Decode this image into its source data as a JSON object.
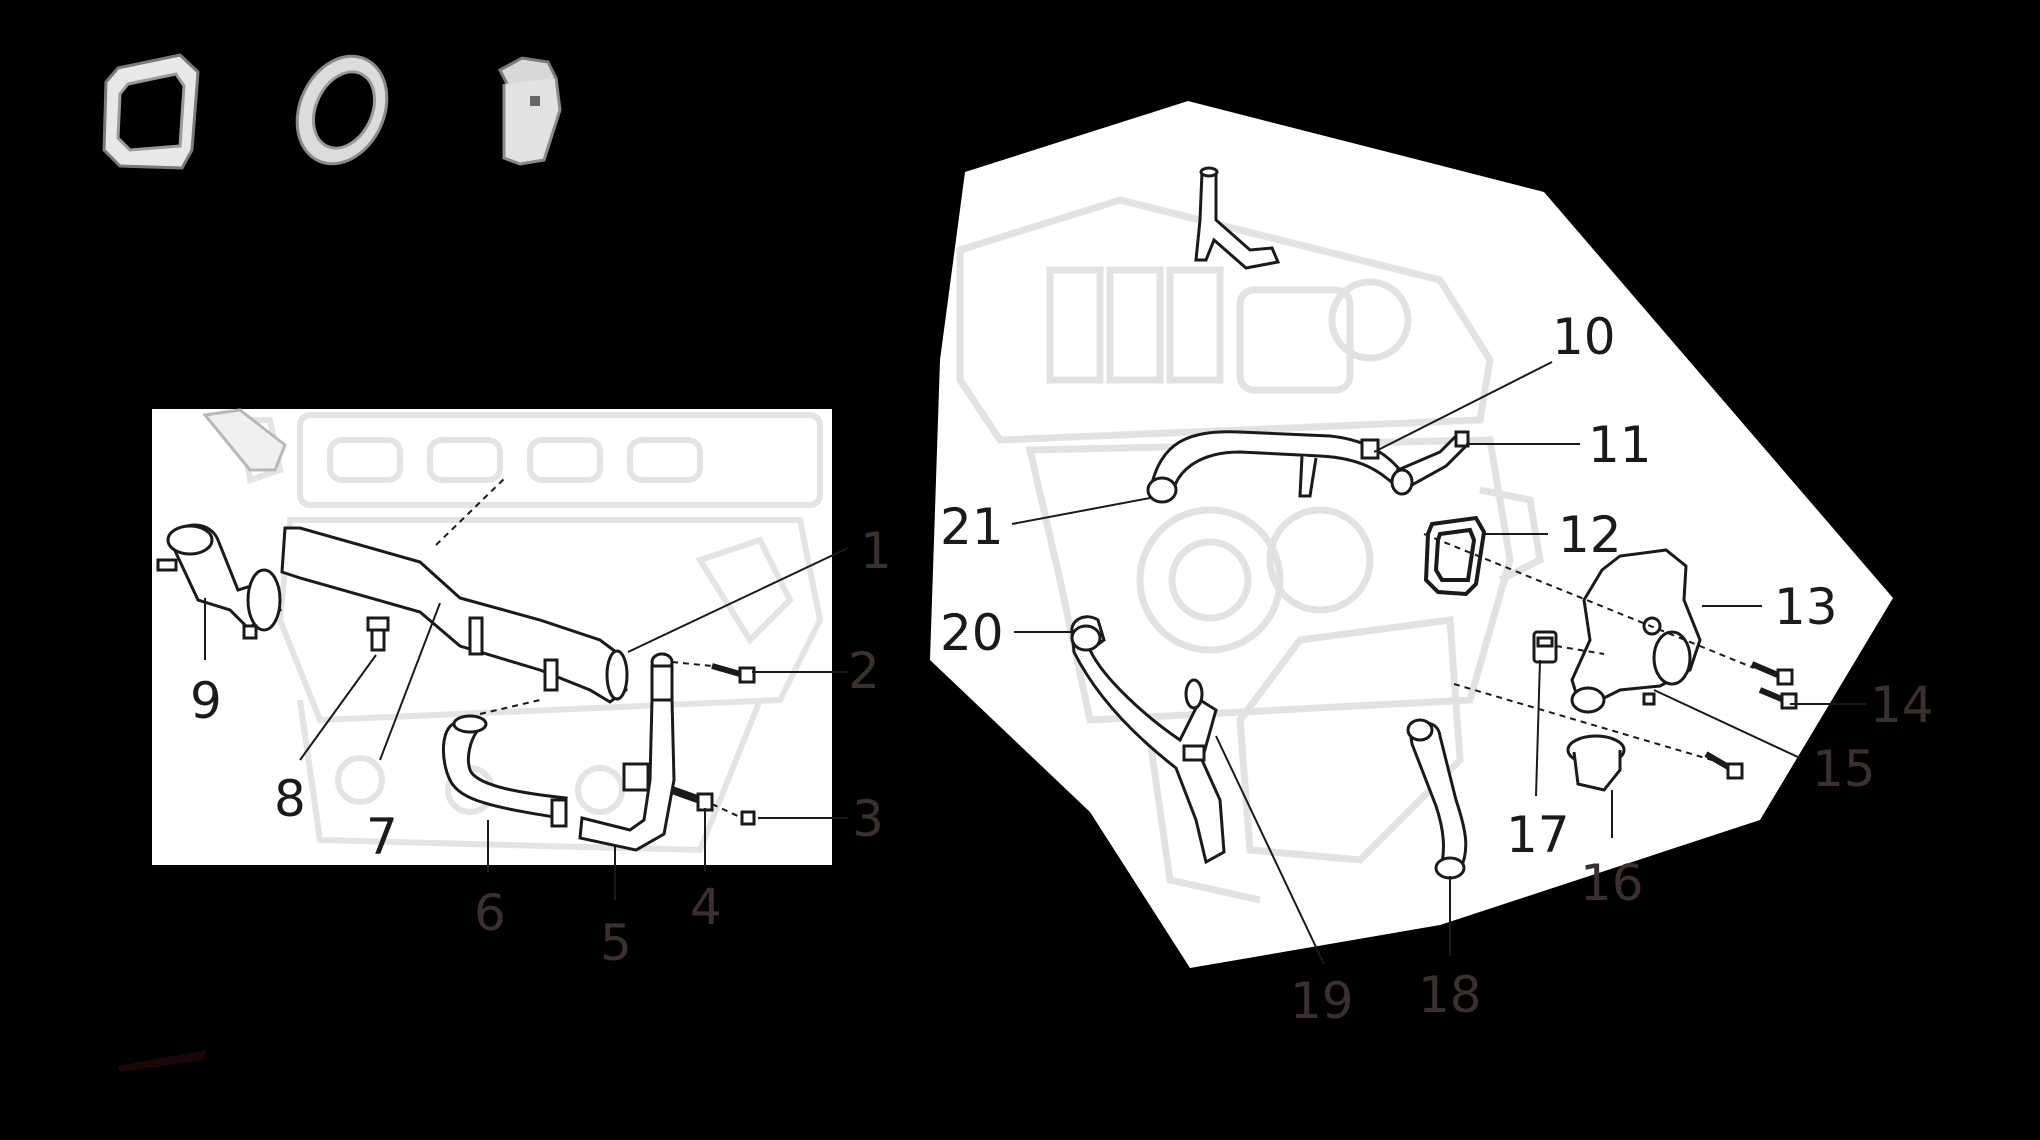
{
  "diagram": {
    "callouts": [
      {
        "id": "1",
        "label": "1"
      },
      {
        "id": "2",
        "label": "2"
      },
      {
        "id": "3",
        "label": "3"
      },
      {
        "id": "4",
        "label": "4"
      },
      {
        "id": "5",
        "label": "5"
      },
      {
        "id": "6",
        "label": "6"
      },
      {
        "id": "7",
        "label": "7"
      },
      {
        "id": "8",
        "label": "8"
      },
      {
        "id": "9",
        "label": "9"
      },
      {
        "id": "10",
        "label": "10"
      },
      {
        "id": "11",
        "label": "11"
      },
      {
        "id": "12",
        "label": "12"
      },
      {
        "id": "13",
        "label": "13"
      },
      {
        "id": "14",
        "label": "14"
      },
      {
        "id": "15",
        "label": "15"
      },
      {
        "id": "16",
        "label": "16"
      },
      {
        "id": "17",
        "label": "17"
      },
      {
        "id": "18",
        "label": "18"
      },
      {
        "id": "19",
        "label": "19"
      },
      {
        "id": "20",
        "label": "20"
      },
      {
        "id": "21",
        "label": "21"
      }
    ],
    "colors": {
      "background": "#000000",
      "panel": "#ffffff",
      "ghost_engine": "#e3e3e3",
      "part_outline": "#1a1a1a",
      "label_dark": "#1a1a1a",
      "label_muted": "#3a3030"
    },
    "legend_icons": [
      "gasket-square-icon",
      "seal-ring-icon",
      "hex-plug-icon"
    ]
  }
}
